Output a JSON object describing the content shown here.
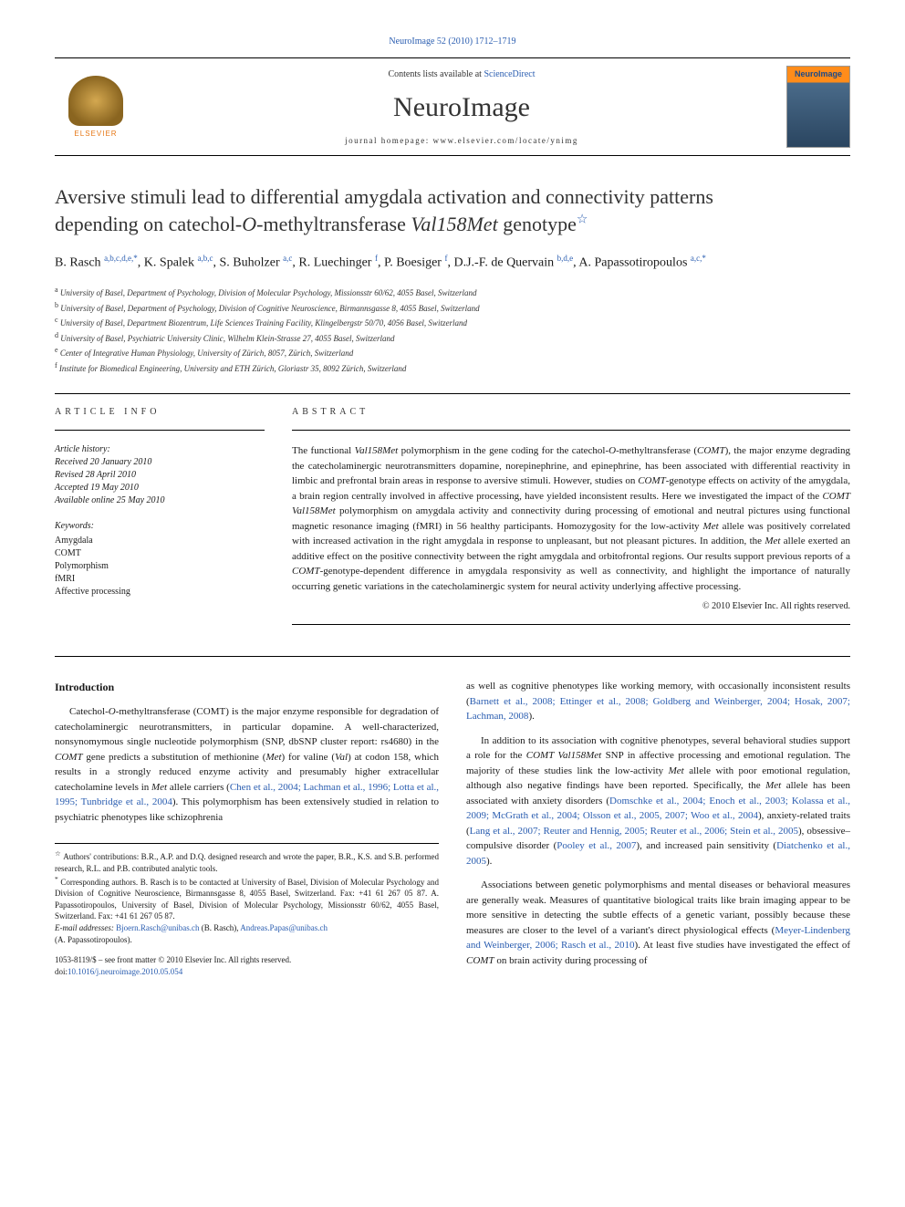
{
  "top_citation": "NeuroImage 52 (2010) 1712–1719",
  "header": {
    "contents_prefix": "Contents lists available at ",
    "contents_link": "ScienceDirect",
    "journal": "NeuroImage",
    "homepage": "journal homepage: www.elsevier.com/locate/ynimg",
    "publisher": "ELSEVIER",
    "cover_label": "NeuroImage"
  },
  "title": {
    "line1": "Aversive stimuli lead to differential amygdala activation and connectivity patterns",
    "line2_pre": "depending on catechol-",
    "line2_ital": "O",
    "line2_mid": "-methyltransferase ",
    "line2_ital2": "Val158Met",
    "line2_post": " genotype"
  },
  "authors_html": "B. Rasch <sup>a,b,c,d,e,</sup><sup class='star-sup'>*</sup>, K. Spalek <sup>a,b,c</sup>, S. Buholzer <sup>a,c</sup>, R. Luechinger <sup>f</sup>, P. Boesiger <sup>f</sup>, D.J.-F. de Quervain <sup>b,d,e</sup>, A. Papassotiropoulos <sup>a,c,</sup><sup class='star-sup'>*</sup>",
  "affiliations": [
    {
      "sup": "a",
      "text": "University of Basel, Department of Psychology, Division of Molecular Psychology, Missionsstr 60/62, 4055 Basel, Switzerland"
    },
    {
      "sup": "b",
      "text": "University of Basel, Department of Psychology, Division of Cognitive Neuroscience, Birmannsgasse 8, 4055 Basel, Switzerland"
    },
    {
      "sup": "c",
      "text": "University of Basel, Department Biozentrum, Life Sciences Training Facility, Klingelbergstr 50/70, 4056 Basel, Switzerland"
    },
    {
      "sup": "d",
      "text": "University of Basel, Psychiatric University Clinic, Wilhelm Klein-Strasse 27, 4055 Basel, Switzerland"
    },
    {
      "sup": "e",
      "text": "Center of Integrative Human Physiology, University of Zürich, 8057, Zürich, Switzerland"
    },
    {
      "sup": "f",
      "text": "Institute for Biomedical Engineering, University and ETH Zürich, Gloriastr 35, 8092 Zürich, Switzerland"
    }
  ],
  "article_info": {
    "label": "ARTICLE INFO",
    "history_label": "Article history:",
    "received": "Received 20 January 2010",
    "revised": "Revised 28 April 2010",
    "accepted": "Accepted 19 May 2010",
    "online": "Available online 25 May 2010",
    "keywords_label": "Keywords:",
    "keywords": [
      "Amygdala",
      "COMT",
      "Polymorphism",
      "fMRI",
      "Affective processing"
    ]
  },
  "abstract": {
    "label": "ABSTRACT",
    "text": "The functional <em>Val158Met</em> polymorphism in the gene coding for the catechol-<em>O</em>-methyltransferase (<em>COMT</em>), the major enzyme degrading the catecholaminergic neurotransmitters dopamine, norepinephrine, and epinephrine, has been associated with differential reactivity in limbic and prefrontal brain areas in response to aversive stimuli. However, studies on <em>COMT</em>-genotype effects on activity of the amygdala, a brain region centrally involved in affective processing, have yielded inconsistent results. Here we investigated the impact of the <em>COMT Val158Met</em> polymorphism on amygdala activity and connectivity during processing of emotional and neutral pictures using functional magnetic resonance imaging (fMRI) in 56 healthy participants. Homozygosity for the low-activity <em>Met</em> allele was positively correlated with increased activation in the right amygdala in response to unpleasant, but not pleasant pictures. In addition, the <em>Met</em> allele exerted an additive effect on the positive connectivity between the right amygdala and orbitofrontal regions. Our results support previous reports of a <em>COMT</em>-genotype-dependent difference in amygdala responsivity as well as connectivity, and highlight the importance of naturally occurring genetic variations in the catecholaminergic system for neural activity underlying affective processing.",
    "copyright": "© 2010 Elsevier Inc. All rights reserved."
  },
  "body": {
    "intro_heading": "Introduction",
    "para1": "Catechol-<em>O</em>-methyltransferase (COMT) is the major enzyme responsible for degradation of catecholaminergic neurotransmitters, in particular dopamine. A well-characterized, nonsynomymous single nucleotide polymorphism (SNP, dbSNP cluster report: rs4680) in the <em>COMT</em> gene predicts a substitution of methionine (<em>Met</em>) for valine (<em>Val</em>) at codon 158, which results in a strongly reduced enzyme activity and presumably higher extracellular catecholamine levels in <em>Met</em> allele carriers (<a href='#'>Chen et al., 2004; Lachman et al., 1996; Lotta et al., 1995; Tunbridge et al., 2004</a>). This polymorphism has been extensively studied in relation to psychiatric phenotypes like schizophrenia",
    "para1b": "as well as cognitive phenotypes like working memory, with occasionally inconsistent results (<a href='#'>Barnett et al., 2008; Ettinger et al., 2008; Goldberg and Weinberger, 2004; Hosak, 2007; Lachman, 2008</a>).",
    "para2": "In addition to its association with cognitive phenotypes, several behavioral studies support a role for the <em>COMT Val158Met</em> SNP in affective processing and emotional regulation. The majority of these studies link the low-activity <em>Met</em> allele with poor emotional regulation, although also negative findings have been reported. Specifically, the <em>Met</em> allele has been associated with anxiety disorders (<a href='#'>Domschke et al., 2004; Enoch et al., 2003; Kolassa et al., 2009; McGrath et al., 2004; Olsson et al., 2005, 2007; Woo et al., 2004</a>), anxiety-related traits (<a href='#'>Lang et al., 2007; Reuter and Hennig, 2005; Reuter et al., 2006; Stein et al., 2005</a>), obsessive–compulsive disorder (<a href='#'>Pooley et al., 2007</a>), and increased pain sensitivity (<a href='#'>Diatchenko et al., 2005</a>).",
    "para3": "Associations between genetic polymorphisms and mental diseases or behavioral measures are generally weak. Measures of quantitative biological traits like brain imaging appear to be more sensitive in detecting the subtle effects of a genetic variant, possibly because these measures are closer to the level of a variant's direct physiological effects (<a href='#'>Meyer-Lindenberg and Weinberger, 2006; Rasch et al., 2010</a>). At least five studies have investigated the effect of <em>COMT</em> on brain activity during processing of"
  },
  "footnotes": {
    "contrib_star": "☆",
    "contrib": "Authors' contributions: B.R., A.P. and D.Q. designed research and wrote the paper, B.R., K.S. and S.B. performed research, R.L. and P.B. contributed analytic tools.",
    "corr_star": "*",
    "corresponding": "Corresponding authors. B. Rasch is to be contacted at University of Basel, Division of Molecular Psychology and Division of Cognitive Neuroscience, Birmannsgasse 8, 4055 Basel, Switzerland. Fax: +41 61 267 05 87. A. Papassotiropoulos, University of Basel, Division of Molecular Psychology, Missionsstr 60/62, 4055 Basel, Switzerland. Fax: +41 61 267 05 87.",
    "email_label": "E-mail addresses:",
    "email1": "Bjoern.Rasch@unibas.ch",
    "email1_who": " (B. Rasch), ",
    "email2": "Andreas.Papas@unibas.ch",
    "email2_who": "(A. Papassotiropoulos)."
  },
  "footer": {
    "issn": "1053-8119/$ – see front matter © 2010 Elsevier Inc. All rights reserved.",
    "doi_label": "doi:",
    "doi": "10.1016/j.neuroimage.2010.05.054"
  },
  "colors": {
    "link": "#2a5db0",
    "text": "#1a1a1a",
    "elsevier_orange": "#e67817"
  }
}
